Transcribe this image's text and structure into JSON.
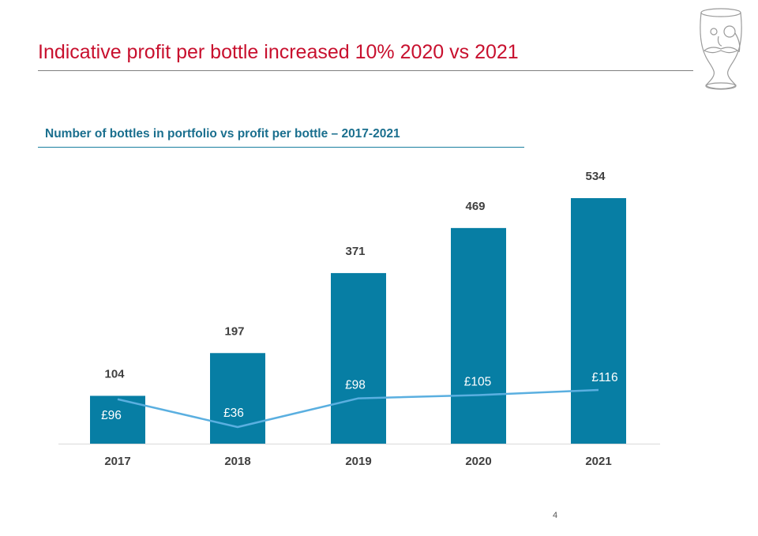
{
  "slide": {
    "title": "Indicative profit per bottle increased 10% 2020 vs 2021",
    "subtitle": "Number of bottles in portfolio vs profit per bottle – 2017-2021",
    "page_number": "4",
    "logo_icon": "whisky-glass-monocle-mustache-icon"
  },
  "colors": {
    "title": "#c8102e",
    "subtitle": "#1a6f8e",
    "bar": "#077ea4",
    "line": "#5aafe0",
    "bar_label": "#404040",
    "axis_label": "#404040"
  },
  "chart_data": {
    "type": "bar",
    "categories": [
      "2017",
      "2018",
      "2019",
      "2020",
      "2021"
    ],
    "series": [
      {
        "name": "",
        "type": "bar",
        "values": [
          104,
          197,
          371,
          469,
          534
        ],
        "labels": [
          "104",
          "197",
          "371",
          "469",
          "534"
        ]
      },
      {
        "name": "",
        "type": "line",
        "values": [
          96,
          36,
          98,
          105,
          116
        ],
        "labels": [
          "£96",
          "£36",
          "£98",
          "£105",
          "£116"
        ]
      }
    ],
    "ylim": [
      0,
      534
    ],
    "grid": false,
    "legend": "none"
  }
}
